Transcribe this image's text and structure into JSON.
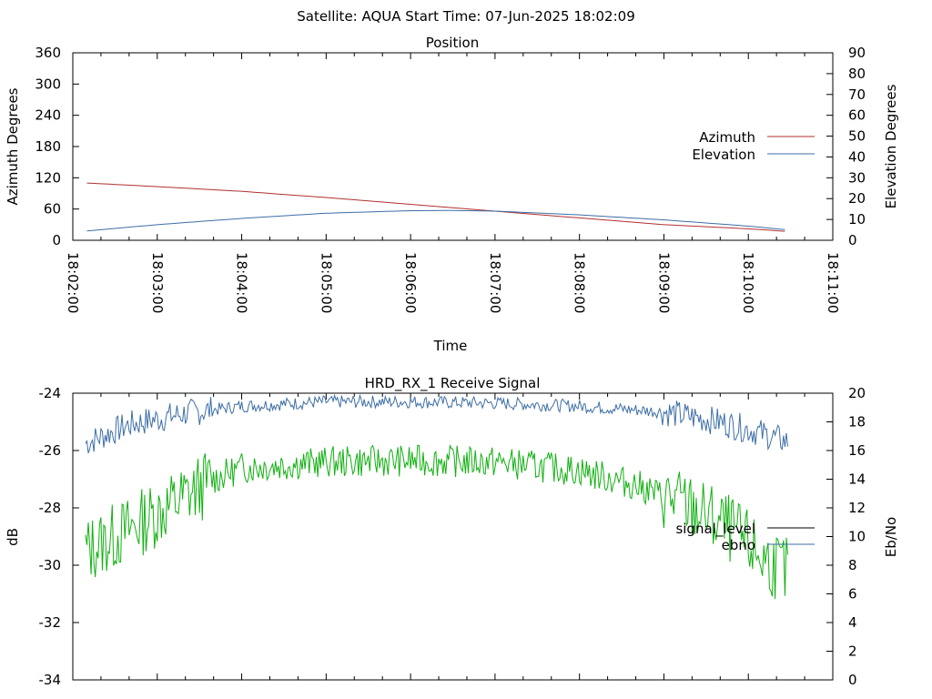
{
  "page_title": "Satellite: AQUA    Start Time: 07-Jun-2025 18:02:09",
  "chart_data": [
    {
      "type": "line",
      "title": "Position",
      "xlabel": "Time",
      "ylabel": "Azimuth Degrees",
      "y2label": "Elevation Degrees",
      "ylim": [
        0,
        360
      ],
      "y2lim": [
        0,
        90
      ],
      "xlim": [
        "18:02:00",
        "18:11:00"
      ],
      "x_ticks": [
        "18:02:00",
        "18:03:00",
        "18:04:00",
        "18:05:00",
        "18:06:00",
        "18:07:00",
        "18:08:00",
        "18:09:00",
        "18:10:00",
        "18:11:00"
      ],
      "y_ticks": [
        "0",
        "60",
        "120",
        "180",
        "240",
        "300",
        "360"
      ],
      "y2_ticks": [
        "0",
        "10",
        "20",
        "30",
        "40",
        "50",
        "60",
        "70",
        "80",
        "90"
      ],
      "legend_position": "right",
      "series": [
        {
          "name": "Azimuth",
          "axis": "left",
          "color": "#b03030",
          "x": [
            "18:02:10",
            "18:03:00",
            "18:04:00",
            "18:05:00",
            "18:06:00",
            "18:07:00",
            "18:08:00",
            "18:09:00",
            "18:10:00",
            "18:10:28"
          ],
          "values": [
            110,
            103,
            94,
            82,
            69,
            56,
            43,
            30,
            22,
            17
          ]
        },
        {
          "name": "Elevation",
          "axis": "right",
          "color": "#3d6ea5",
          "x": [
            "18:02:10",
            "18:03:00",
            "18:04:00",
            "18:05:00",
            "18:06:00",
            "18:06:30",
            "18:07:00",
            "18:08:00",
            "18:09:00",
            "18:10:00",
            "18:10:28"
          ],
          "values": [
            4.5,
            7.5,
            10.5,
            13,
            14.2,
            14.3,
            14,
            12.2,
            9.8,
            6.8,
            5
          ]
        }
      ]
    },
    {
      "type": "line",
      "title": "HRD_RX_1 Receive Signal",
      "ylabel": "dB",
      "y2label": "Eb/No",
      "ylim": [
        -34,
        -24
      ],
      "y2lim": [
        0,
        20
      ],
      "xlim": [
        "18:02:00",
        "18:11:00"
      ],
      "y_ticks": [
        "-24",
        "-26",
        "-28",
        "-30",
        "-32",
        "-34"
      ],
      "y2_ticks": [
        "20",
        "18",
        "16",
        "14",
        "12",
        "10",
        "8",
        "6",
        "4",
        "2",
        "0"
      ],
      "legend_position": "right",
      "series": [
        {
          "name": "signal_level",
          "axis": "left",
          "color": "#000000",
          "x": [],
          "values": []
        },
        {
          "name": "ebno",
          "axis": "right",
          "color": "#3d6ea5",
          "x": [
            "18:02:09",
            "18:02:40",
            "18:03:20",
            "18:04:00",
            "18:05:00",
            "18:06:00",
            "18:07:00",
            "18:08:00",
            "18:09:00",
            "18:09:40",
            "18:10:10",
            "18:10:28"
          ],
          "values": [
            16.5,
            17.8,
            18.6,
            19.1,
            19.4,
            19.4,
            19.3,
            19.1,
            18.7,
            18.0,
            17.2,
            16.6
          ]
        },
        {
          "name": "",
          "axis": "right",
          "color": "#10b010",
          "x": [
            "18:02:09",
            "18:02:40",
            "18:03:20",
            "18:03:40",
            "18:04:00",
            "18:05:00",
            "18:06:00",
            "18:07:00",
            "18:08:00",
            "18:08:40",
            "18:09:20",
            "18:09:50",
            "18:10:10",
            "18:10:28"
          ],
          "values": [
            9.0,
            10.5,
            12.8,
            14.0,
            14.8,
            15.2,
            15.3,
            15.2,
            14.6,
            13.6,
            12.0,
            10.3,
            8.5,
            7.5
          ]
        }
      ]
    }
  ]
}
